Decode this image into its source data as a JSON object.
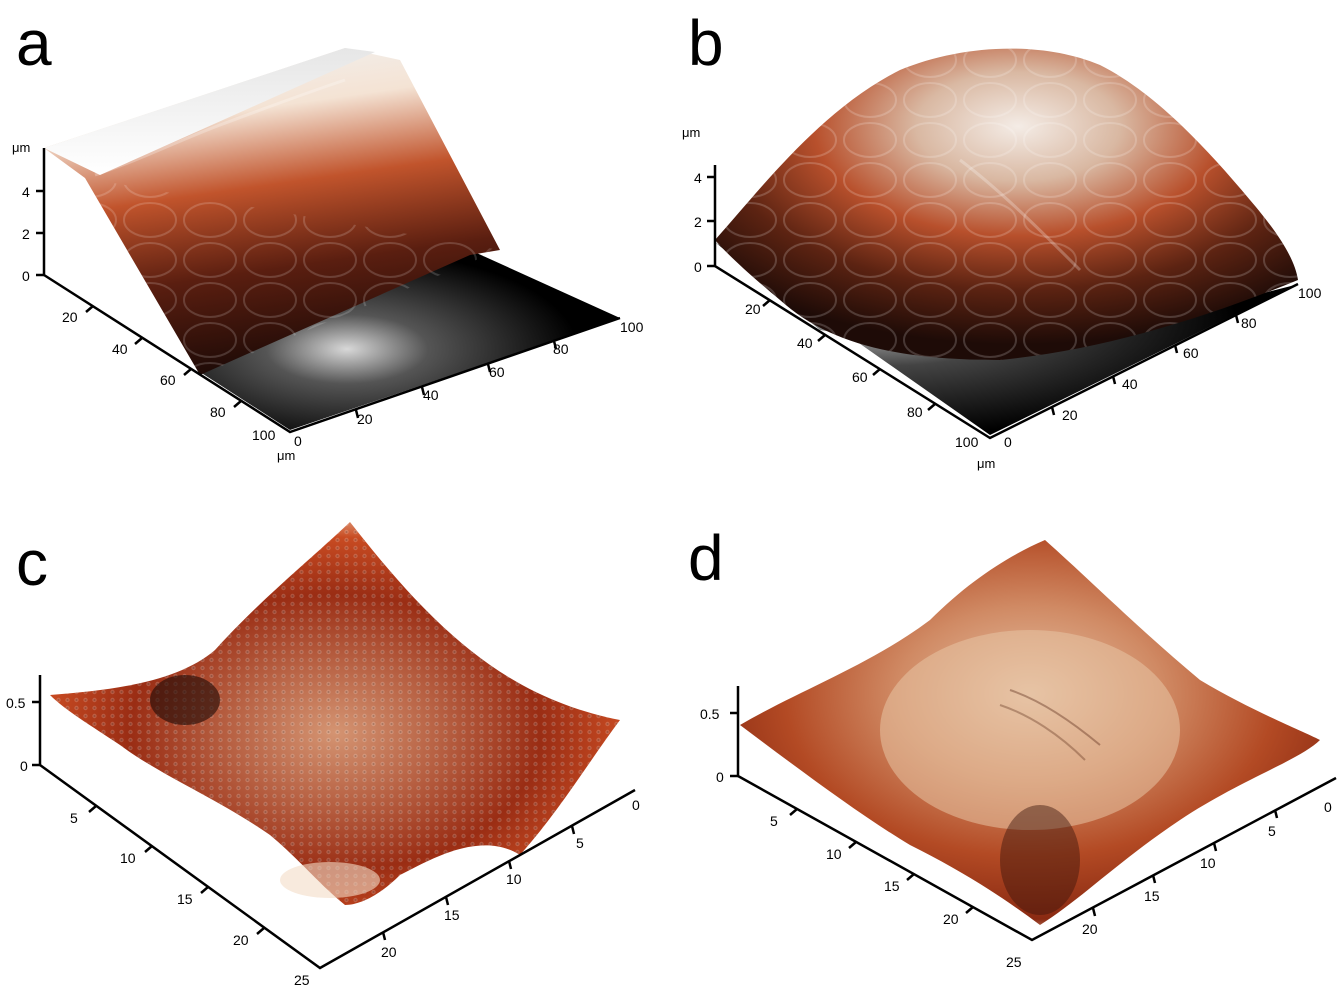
{
  "panels": [
    {
      "letter": "a",
      "z_unit": "μm",
      "z_ticks": [
        "0",
        "2",
        "4"
      ],
      "left_ticks": [
        "20",
        "40",
        "60",
        "80",
        "100"
      ],
      "right_ticks": [
        "0",
        "20",
        "40",
        "60",
        "80",
        "100"
      ],
      "corner_unit": "μm"
    },
    {
      "letter": "b",
      "z_unit": "μm",
      "z_ticks": [
        "0",
        "2",
        "4"
      ],
      "left_ticks": [
        "20",
        "40",
        "60",
        "80",
        "100"
      ],
      "right_ticks": [
        "0",
        "20",
        "40",
        "60",
        "80",
        "100"
      ],
      "corner_unit": "μm"
    },
    {
      "letter": "c",
      "z_ticks": [
        "0",
        "0.5"
      ],
      "left_ticks": [
        "5",
        "10",
        "15",
        "20",
        "25"
      ],
      "right_ticks": [
        "0",
        "5",
        "10",
        "15",
        "20"
      ]
    },
    {
      "letter": "d",
      "z_ticks": [
        "0",
        "0.5"
      ],
      "left_ticks": [
        "5",
        "10",
        "15",
        "20",
        "25"
      ],
      "right_ticks": [
        "0",
        "5",
        "10",
        "15",
        "20"
      ]
    }
  ],
  "colors": {
    "surface_dark": "#1a0a05",
    "surface_mid": "#b03a18",
    "surface_light": "#f6e8dc",
    "floor": "#000000"
  }
}
